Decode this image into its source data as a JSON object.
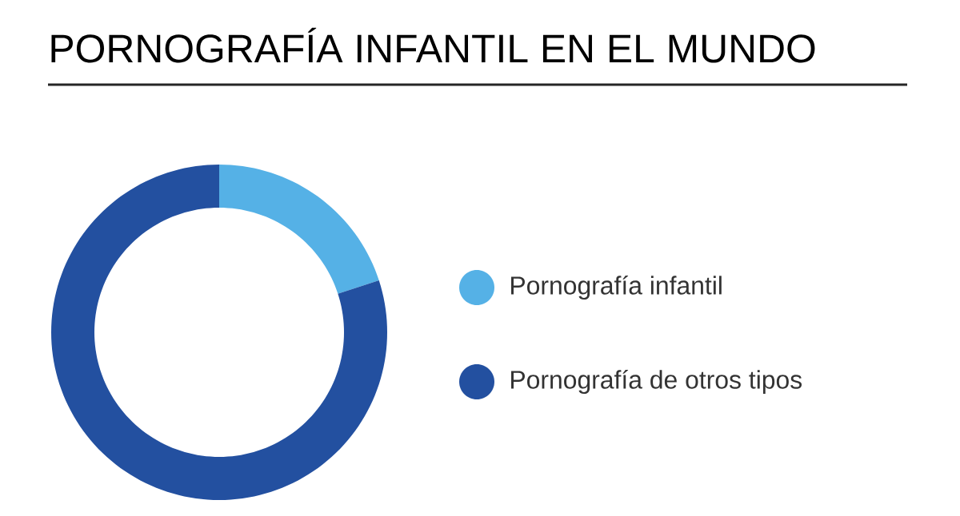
{
  "chart_data": {
    "type": "donut",
    "title": "PORNOGRAFÍA INFANTIL EN EL MUNDO",
    "categories": [
      "Pornografía infantil",
      "Pornografía de otros tipos"
    ],
    "values": [
      20,
      80
    ],
    "colors": [
      "#55b1e6",
      "#2350a0"
    ],
    "legend": "right"
  }
}
